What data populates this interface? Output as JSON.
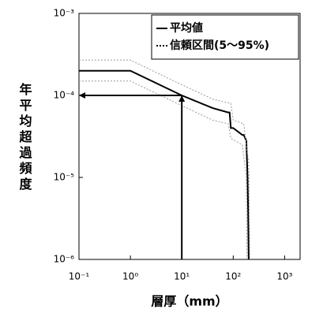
{
  "chart_data": {
    "type": "line",
    "x_label": "層厚（mm）",
    "y_label": "年平均超過頻度",
    "log_x": true,
    "log_y": true,
    "xlim": [
      0.1,
      2000
    ],
    "ylim": [
      1e-06,
      0.001
    ],
    "xticks": [
      {
        "value": 0.1,
        "label": "10⁻¹"
      },
      {
        "value": 1,
        "label": "10⁰"
      },
      {
        "value": 10,
        "label": "10¹"
      },
      {
        "value": 100,
        "label": "10²"
      },
      {
        "value": 1000,
        "label": "10³"
      }
    ],
    "yticks": [
      {
        "value": 1e-06,
        "label": "10⁻⁶"
      },
      {
        "value": 1e-05,
        "label": "10⁻⁵"
      },
      {
        "value": 0.0001,
        "label": "10⁻⁴"
      },
      {
        "value": 0.001,
        "label": "10⁻³"
      }
    ],
    "legend": "upper right",
    "series": [
      {
        "name": "平均値",
        "color": "#000000",
        "x": [
          0.1,
          1,
          10,
          40,
          80,
          85,
          90,
          100,
          150,
          160,
          180,
          190,
          195,
          200
        ],
        "values": [
          0.0002,
          0.0002,
          0.0001,
          7e-05,
          6.2e-05,
          6.2e-05,
          4e-05,
          4e-05,
          3.3e-05,
          3.3e-05,
          2.8e-05,
          1e-05,
          4e-06,
          1e-06
        ]
      },
      {
        "name": "信頼区間(5～95%)",
        "color": "#999999",
        "x": [
          0.1,
          1,
          10,
          40,
          90,
          100,
          160,
          200,
          210
        ],
        "values": [
          0.00027,
          0.00027,
          0.000135,
          9e-05,
          8e-05,
          5e-05,
          4.5e-05,
          1.5e-05,
          1e-06
        ]
      },
      {
        "color": "#999999",
        "x": [
          0.1,
          1,
          10,
          40,
          80,
          90,
          150,
          180,
          185
        ],
        "values": [
          0.00015,
          0.00015,
          7.5e-05,
          5e-05,
          4.5e-05,
          3e-05,
          2.5e-05,
          1e-05,
          1e-06
        ]
      }
    ],
    "annotation": {
      "x": 10,
      "y": 0.0001
    }
  }
}
